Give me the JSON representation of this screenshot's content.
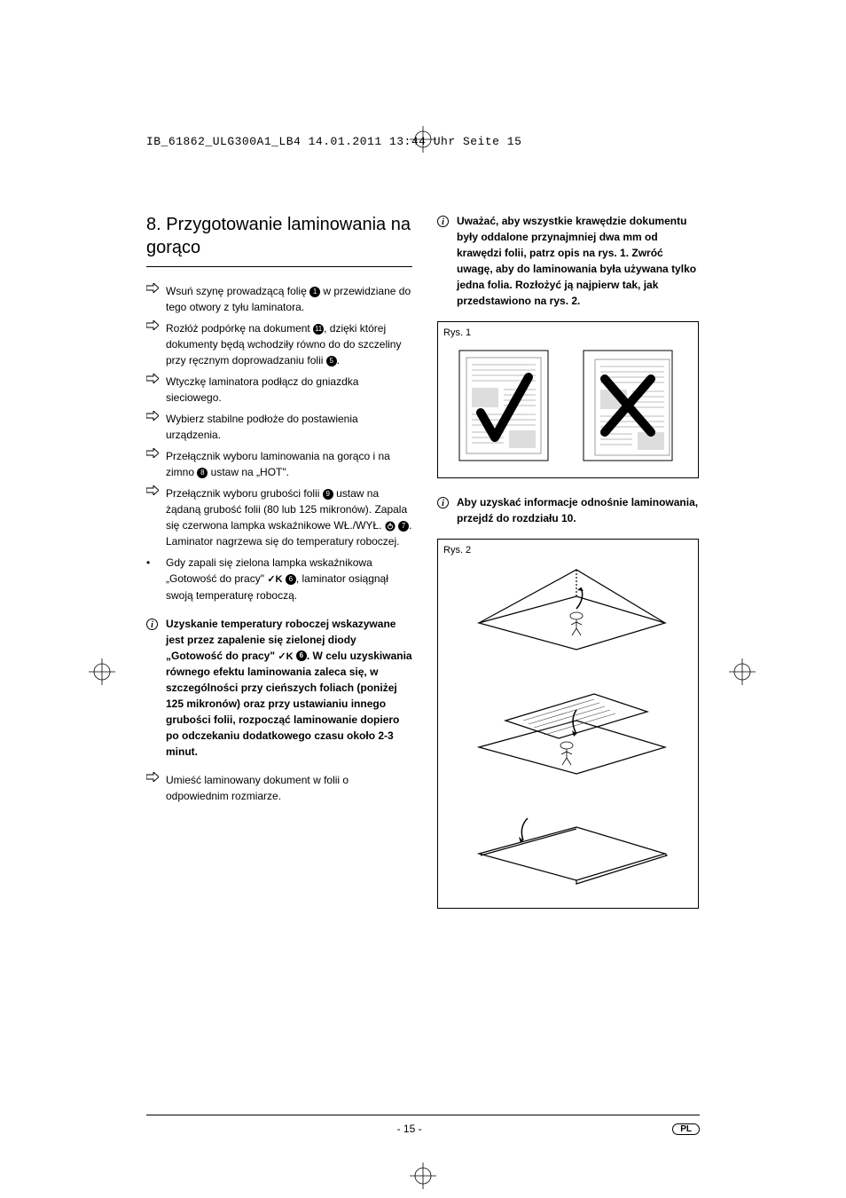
{
  "crop": {
    "header_line": "IB_61862_ULG300A1_LB4  14.01.2011  13:44 Uhr  Seite 15"
  },
  "heading": "8. Przygotowanie laminowania na gorąco",
  "left_items": [
    {
      "type": "arrow",
      "text": "Wsuń szynę prowadzącą folię ",
      "circ": "1",
      "text2": " w przewidziane do tego otwory z tyłu laminatora."
    },
    {
      "type": "arrow",
      "text": "Rozłóż podpórkę na dokument ",
      "circ": "11",
      "text2": ", dzięki której dokumenty będą wchodziły równo do do szczeliny przy ręcznym doprowadzaniu folii ",
      "circ2": "5",
      "text3": "."
    },
    {
      "type": "arrow",
      "text": "Wtyczkę laminatora podłącz do gniazdka sieciowego."
    },
    {
      "type": "arrow",
      "text": "Wybierz stabilne podłoże do postawienia urządzenia."
    },
    {
      "type": "arrow",
      "text": "Przełącznik wyboru laminowania na gorąco i na zimno ",
      "circ": "8",
      "text2": " ustaw na „HOT\"."
    },
    {
      "type": "arrow",
      "text": "Przełącznik wyboru grubości folii ",
      "circ": "9",
      "text2": " ustaw na żądaną grubość folii (80 lub 125 mikronów). Zapala się czerwona lampka wskaźnikowe WŁ./WYŁ. ",
      "circ2a": "",
      "circ2": "7",
      "text3": ". Laminator nagrzewa się do temperatury roboczej."
    },
    {
      "type": "bullet",
      "text": "Gdy zapali się zielona lampka wskaźnikowa „Gotowość do pracy\" ",
      "ok": true,
      "circ": "6",
      "text2": ", laminator osiągnął swoją temperaturę roboczą."
    }
  ],
  "left_info": {
    "pre": "Uzyskanie temperatury roboczej wskazywane jest przez zapalenie się zielonej diody „Gotowość do pracy\"  ",
    "circ": "6",
    "post": ". W celu uzyskiwania równego efektu laminowania zaleca się, w szczególności przy cieńszych foliach (poniżej 125 mikronów) oraz przy ustawianiu innego grubości folii, rozpocząć laminowanie dopiero po odczekaniu dodatkowego czasu około 2-3 minut."
  },
  "left_last": {
    "type": "arrow",
    "text": "Umieść laminowany dokument w folii o odpowiednim rozmiarze."
  },
  "right_info1": "Uważać, aby wszystkie krawędzie dokumentu były oddalone przynajmniej dwa mm od krawędzi folii, patrz opis na rys. 1. Zwróć uwagę, aby do laminowania była używana tylko jedna folia. Rozłożyć ją najpierw tak, jak przedstawiono na rys. 2.",
  "fig1_label": "Rys. 1",
  "fig2_label": "Rys. 2",
  "right_info2": "Aby uzyskać informacje odnośnie laminowania, przejdź do rozdziału 10.",
  "fig1": {
    "check_color": "#000000",
    "x_color": "#000000",
    "line_color": "#888888"
  },
  "footer": {
    "page": "- 15 -",
    "lang": "PL"
  }
}
